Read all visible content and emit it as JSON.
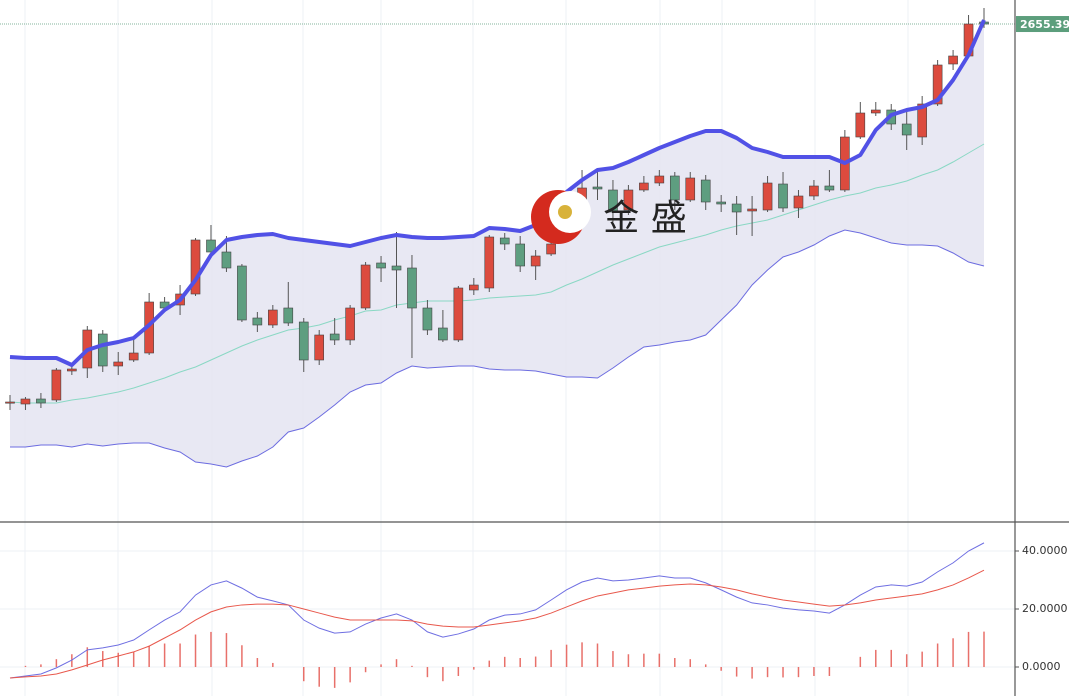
{
  "chart_data": [
    {
      "type": "candlestick",
      "watermark": "金 盛",
      "categories": [
        null,
        null,
        null,
        null,
        null,
        null,
        null,
        null,
        null,
        null,
        null,
        null,
        null,
        null,
        null,
        null,
        null,
        null,
        null,
        null,
        null,
        null,
        null,
        null,
        null,
        null,
        null,
        null,
        null,
        null,
        null,
        null,
        null,
        null,
        null,
        null,
        null,
        null,
        null,
        null,
        null,
        null,
        null,
        null,
        null,
        null,
        null,
        null,
        null,
        null,
        null,
        null,
        null,
        null,
        null,
        null,
        null,
        null,
        null,
        null,
        null,
        null,
        null,
        null
      ],
      "open": [
        2503.8,
        2503.4,
        2505.4,
        2505,
        2516.6,
        2517.8,
        2531.4,
        2518.6,
        2521,
        2523.8,
        2544.2,
        2543,
        2547.4,
        2569,
        2564.2,
        2558.6,
        2537.8,
        2535,
        2541.8,
        2536.2,
        2521,
        2531.4,
        2529,
        2541.8,
        2559.8,
        2558.6,
        2557.8,
        2541.8,
        2533.8,
        2529,
        2549,
        2549.8,
        2569.8,
        2567.4,
        2558.6,
        2563.4,
        2569,
        2585,
        2590.2,
        2589,
        2581,
        2589,
        2591.8,
        2594.6,
        2585,
        2593,
        2584.2,
        2583.4,
        2580.6,
        2581,
        2591.4,
        2581.8,
        2586.6,
        2590.6,
        2589,
        2610.2,
        2619.8,
        2621,
        2615.4,
        2610.2,
        2623.4,
        2639.4,
        2642.6,
        2656.2
      ],
      "high": [
        2507,
        2506.2,
        2507.8,
        2517.8,
        2518.6,
        2534.6,
        2533,
        2524.2,
        2529.8,
        2547.8,
        2546.2,
        2551,
        2569.8,
        2575,
        2570.6,
        2559.4,
        2540.2,
        2543,
        2552.2,
        2537.8,
        2533,
        2537.8,
        2543,
        2560.2,
        2562.6,
        2572.2,
        2563,
        2545,
        2541,
        2550.6,
        2553.8,
        2571,
        2571.8,
        2570.6,
        2565,
        2575,
        2585.8,
        2597,
        2597,
        2593,
        2591,
        2594.6,
        2597,
        2596.2,
        2596.2,
        2595,
        2587,
        2586.6,
        2586.6,
        2594.6,
        2596.2,
        2589,
        2593,
        2597,
        2613,
        2624.2,
        2624.2,
        2623.4,
        2620.2,
        2626.6,
        2641,
        2645,
        2659,
        2661.8
      ],
      "low": [
        2501,
        2501,
        2501.8,
        2504.2,
        2515,
        2513.8,
        2516.2,
        2515,
        2520.2,
        2523,
        2540.2,
        2539,
        2546.6,
        2561.8,
        2556.2,
        2536.2,
        2532.2,
        2533.8,
        2534.6,
        2516.2,
        2519,
        2527,
        2527,
        2541,
        2552.2,
        2541.8,
        2521.8,
        2531,
        2528.2,
        2528.2,
        2547,
        2548.2,
        2565,
        2556.2,
        2553,
        2562.6,
        2568.2,
        2583,
        2585,
        2576.2,
        2579,
        2588.2,
        2590.6,
        2581,
        2584.2,
        2581,
        2580.2,
        2571,
        2570.6,
        2580.2,
        2580.2,
        2577.8,
        2585,
        2588.2,
        2588.2,
        2609.4,
        2618.6,
        2613,
        2605,
        2607,
        2622.6,
        2637,
        2641.8,
        2653.8
      ],
      "close": [
        2504.2,
        2505.4,
        2503.8,
        2517,
        2517.4,
        2533,
        2518.6,
        2520.2,
        2523.8,
        2544.2,
        2541.8,
        2547.4,
        2569,
        2564.2,
        2557.8,
        2537,
        2535,
        2541,
        2535.8,
        2521,
        2531,
        2529,
        2541.8,
        2559,
        2557.8,
        2557,
        2541.8,
        2533,
        2529,
        2549.8,
        2551,
        2570.2,
        2567.4,
        2558.6,
        2562.6,
        2567.4,
        2583,
        2589.8,
        2589.4,
        2580.2,
        2589,
        2591.8,
        2594.6,
        2585,
        2593.8,
        2584.2,
        2583.4,
        2580.2,
        2581.4,
        2591.8,
        2581.8,
        2586.6,
        2590.6,
        2589,
        2610.2,
        2619.8,
        2621,
        2615.4,
        2611,
        2623.4,
        2639,
        2642.6,
        2655.4,
        2655.39
      ],
      "up_color": "#dc4b3e",
      "down_color": "#5e9e80",
      "wick_color": "#555555",
      "series": [
        {
          "color": "#5151e6",
          "values": [
            2522.2,
            2521.8,
            2521.8,
            2521.8,
            2519,
            2525,
            2527,
            2528.2,
            2529.8,
            2535,
            2541,
            2545,
            2553,
            2563,
            2569,
            2570.2,
            2571,
            2571.4,
            2569.8,
            2569,
            2568.2,
            2567.4,
            2566.6,
            2568.2,
            2569.8,
            2571,
            2570.2,
            2569.8,
            2569.8,
            2570.2,
            2570.6,
            2573.8,
            2573.4,
            2572.6,
            2575,
            2581,
            2588.2,
            2593,
            2597,
            2597.8,
            2600.2,
            2603,
            2605.8,
            2608.2,
            2610.6,
            2612.6,
            2612.6,
            2609.8,
            2605.8,
            2604.2,
            2602.2,
            2602.2,
            2602.2,
            2602.2,
            2599.8,
            2603,
            2613,
            2619,
            2621,
            2622.2,
            2625,
            2633,
            2643,
            2657
          ]
        },
        {
          "color": "#8ad8c4",
          "values": [
            2504.2,
            2503.8,
            2503.8,
            2503.8,
            2505,
            2505.8,
            2507,
            2508.2,
            2509.8,
            2511.8,
            2513.8,
            2516.2,
            2518.2,
            2521,
            2523.8,
            2526.6,
            2529,
            2531,
            2533,
            2533.8,
            2535,
            2537,
            2538.6,
            2540.6,
            2541,
            2543,
            2543.8,
            2544.6,
            2544.6,
            2544.6,
            2545,
            2545.8,
            2546.2,
            2546.6,
            2547,
            2548.2,
            2551,
            2553.4,
            2556.2,
            2559,
            2561.4,
            2563.8,
            2566.2,
            2567.8,
            2569.4,
            2571,
            2573,
            2574.6,
            2575.8,
            2577,
            2579,
            2581,
            2583,
            2585,
            2586.6,
            2587.8,
            2589.8,
            2591,
            2592.6,
            2595,
            2597,
            2600.2,
            2603.8,
            2607.4
          ]
        },
        {
          "color": "#6c6ce0",
          "values": [
            2486.2,
            2486.2,
            2487,
            2487,
            2486.2,
            2487.4,
            2486.6,
            2487.4,
            2487.8,
            2487.8,
            2485.8,
            2484.2,
            2480.2,
            2479.4,
            2478.2,
            2480.6,
            2482.6,
            2486.2,
            2492.2,
            2493.8,
            2498.2,
            2503,
            2508.2,
            2511,
            2511.8,
            2515.8,
            2518.6,
            2517.8,
            2518.2,
            2518.6,
            2518.6,
            2517.4,
            2517,
            2517,
            2516.6,
            2515.4,
            2514.2,
            2514.2,
            2513.8,
            2517.8,
            2522.2,
            2526.2,
            2527,
            2528.2,
            2529,
            2531,
            2537,
            2543,
            2551,
            2557,
            2562.2,
            2564.2,
            2567,
            2570.6,
            2573,
            2571.8,
            2569.8,
            2567.8,
            2567,
            2567,
            2566.6,
            2563.8,
            2560.2,
            2558.6
          ]
        }
      ],
      "band_fill": "#e4e4f1",
      "ylim": [
        2456.2,
        2665
      ],
      "last_price": 2655.39,
      "last_price_color": "#5c9e7c"
    },
    {
      "type": "macd",
      "categories": [
        null,
        null,
        null,
        null,
        null,
        null,
        null,
        null,
        null,
        null,
        null,
        null,
        null,
        null,
        null,
        null,
        null,
        null,
        null,
        null,
        null,
        null,
        null,
        null,
        null,
        null,
        null,
        null,
        null,
        null,
        null,
        null,
        null,
        null,
        null,
        null,
        null,
        null,
        null,
        null,
        null,
        null,
        null,
        null,
        null,
        null,
        null,
        null,
        null,
        null,
        null,
        null,
        null,
        null,
        null,
        null,
        null,
        null,
        null,
        null,
        null,
        null,
        null,
        null
      ],
      "histogram": [
        0,
        0.4,
        0.9,
        2.7,
        4.4,
        6.8,
        5.5,
        4.9,
        5.3,
        7.3,
        8.1,
        8.1,
        11.2,
        12.1,
        11.7,
        7.5,
        3.1,
        1.4,
        0,
        -4.9,
        -6.8,
        -7.2,
        -5.3,
        -1.8,
        0.9,
        2.7,
        0.4,
        -3.5,
        -4.9,
        -3.1,
        -0.9,
        2.2,
        3.5,
        3.1,
        3.6,
        5.9,
        7.7,
        8.5,
        8.1,
        5.5,
        4.4,
        4.6,
        4.6,
        3.1,
        2.7,
        0.9,
        -1.3,
        -3.3,
        -4,
        -3.5,
        -3.6,
        -3.5,
        -3.1,
        -3.1,
        0,
        3.5,
        5.9,
        5.9,
        4.4,
        5.3,
        8.1,
        9.9,
        12.1,
        12.2
      ],
      "histogram_color": "#e8706a",
      "series": [
        {
          "color": "#6f6fe2",
          "values": [
            -3.8,
            -3.1,
            -2.4,
            -0.3,
            2.4,
            5.9,
            6.6,
            7.6,
            9.3,
            12.8,
            16.2,
            19,
            24.8,
            28.3,
            29.7,
            27.2,
            24.1,
            22.8,
            21.4,
            16.2,
            13.4,
            11.7,
            12.1,
            14.8,
            16.9,
            18.3,
            16.2,
            12.1,
            10.3,
            11.4,
            13.1,
            16.2,
            17.9,
            18.3,
            19.7,
            23.1,
            26.6,
            29.3,
            30.7,
            29.7,
            30,
            30.7,
            31.4,
            30.7,
            30.7,
            29,
            26.6,
            24.1,
            22.1,
            21.4,
            20.3,
            19.7,
            19.3,
            18.6,
            21.4,
            24.8,
            27.6,
            28.3,
            27.9,
            29.3,
            32.8,
            35.9,
            40,
            42.8
          ]
        },
        {
          "color": "#e8584c",
          "values": [
            -3.8,
            -3.4,
            -3.1,
            -2.4,
            -1,
            0.7,
            2.4,
            3.8,
            5.2,
            7.2,
            10,
            12.8,
            16.2,
            19,
            20.7,
            21.4,
            21.7,
            21.7,
            21.4,
            20,
            18.6,
            17.2,
            16.2,
            16.2,
            16.2,
            16.2,
            15.9,
            14.8,
            14.1,
            13.8,
            13.8,
            14.5,
            15.2,
            15.9,
            16.9,
            18.6,
            20.7,
            22.8,
            24.5,
            25.5,
            26.6,
            27.2,
            27.9,
            28.3,
            28.6,
            28.3,
            27.6,
            26.6,
            25.2,
            24.1,
            23.1,
            22.4,
            21.7,
            21,
            21.4,
            22.1,
            23.1,
            23.8,
            24.5,
            25.2,
            26.6,
            28.3,
            30.7,
            33.4
          ]
        }
      ],
      "ylim": [
        -10,
        50
      ],
      "yticks": [
        {
          "value": 0,
          "label": "0.0000"
        },
        {
          "value": 20,
          "label": "20.0000"
        },
        {
          "value": 40,
          "label": "40.0000"
        }
      ],
      "grid": true
    }
  ]
}
